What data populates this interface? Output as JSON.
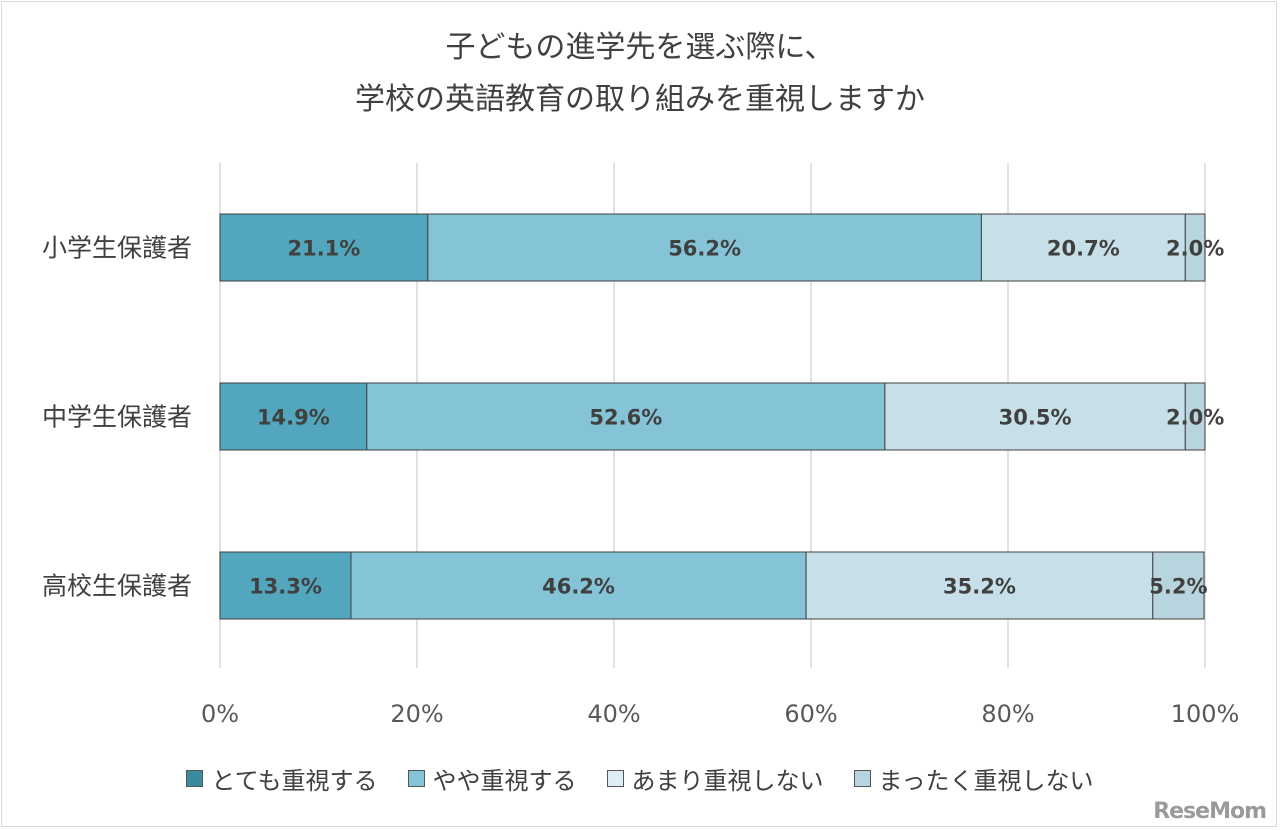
{
  "title_line1": "子どもの進学先を選ぶ際に、",
  "title_line2": "学校の英語教育の取り組みを重視しますか",
  "logo_text": "ReseMom",
  "chart_data": {
    "type": "bar",
    "orientation": "horizontal",
    "stacked": "percent",
    "title": "子どもの進学先を選ぶ際に、学校の英語教育の取り組みを重視しますか",
    "categories": [
      "小学生保護者",
      "中学生保護者",
      "高校生保護者"
    ],
    "series": [
      {
        "name": "とても重視する",
        "values": [
          21.1,
          14.9,
          13.3
        ],
        "color": "#52a6bd"
      },
      {
        "name": "やや重視する",
        "values": [
          56.2,
          52.6,
          46.2
        ],
        "color": "#84c4d6"
      },
      {
        "name": "あまり重視しない",
        "values": [
          20.7,
          30.5,
          35.2
        ],
        "color": "#c6dfe8"
      },
      {
        "name": "まったく重視しない",
        "values": [
          2.0,
          2.0,
          5.2
        ],
        "color": "#b7d4df"
      }
    ],
    "xlim": [
      0,
      100
    ],
    "xticks": [
      "0%",
      "20%",
      "40%",
      "60%",
      "80%",
      "100%"
    ],
    "grid": true,
    "legend_position": "bottom",
    "legend_swatch_colors": [
      "#3b8a9d",
      "#84c4d6",
      "#ddeef4",
      "#b7d4df"
    ]
  }
}
